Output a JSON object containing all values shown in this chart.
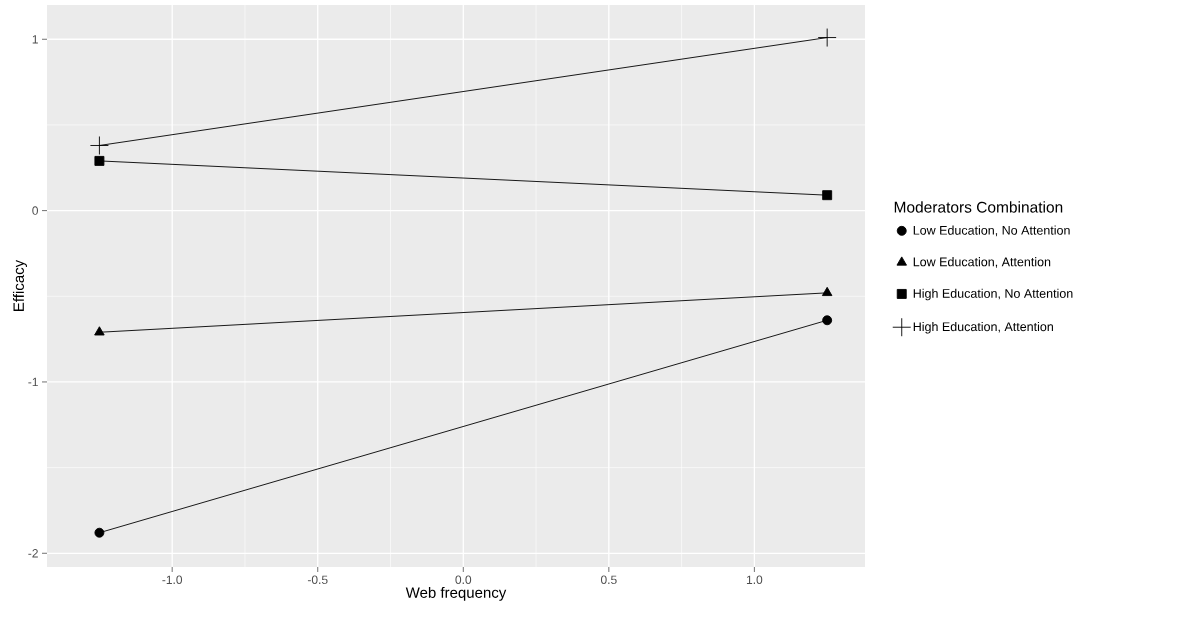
{
  "chart_data": {
    "type": "line",
    "xlabel": "Web frequency",
    "ylabel": "Efficacy",
    "legend_title": "Moderators Combination",
    "legend": "right",
    "grid": true,
    "line_style": "solid",
    "xlim": [
      -1.43,
      1.38
    ],
    "ylim": [
      -2.08,
      1.2
    ],
    "xticks": [
      {
        "value": -1,
        "label": "-1.0"
      },
      -0.5,
      {
        "value": 0,
        "label": "0.0"
      },
      0.5,
      {
        "value": 1,
        "label": "1.0"
      }
    ],
    "yticks": [
      -2,
      -1,
      0,
      1
    ],
    "x": [
      -1.25,
      1.25
    ],
    "series": [
      {
        "name": "Low Education, No Attention",
        "color": "#000000",
        "marker": "circle",
        "values": [
          -1.88,
          -0.64
        ]
      },
      {
        "name": "Low Education, Attention",
        "color": "#000000",
        "marker": "triangle",
        "values": [
          -0.71,
          -0.48
        ]
      },
      {
        "name": "High Education, No Attention",
        "color": "#000000",
        "marker": "square",
        "values": [
          0.29,
          0.09
        ]
      },
      {
        "name": "High Education, Attention",
        "color": "#000000",
        "marker": "cross",
        "values": [
          0.38,
          1.01
        ]
      }
    ]
  }
}
